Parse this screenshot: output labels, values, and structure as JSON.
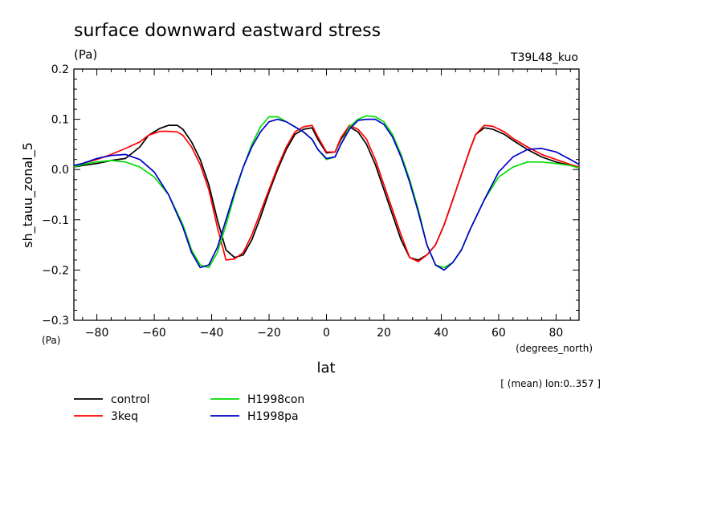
{
  "chart_data": {
    "type": "line",
    "title": "surface downward eastward stress",
    "units_label": "(Pa)",
    "top_right_label": "T39L48_kuo",
    "ylabel": "sh_tauu_zonal_5",
    "y_unit_label": "(Pa)",
    "xlabel": "lat",
    "x_unit_label": "(degrees_north)",
    "footnote": "[ (mean) lon:0..357 ]",
    "xlim": [
      -88,
      88
    ],
    "ylim": [
      -0.3,
      0.2
    ],
    "x_ticks": [
      -80,
      -60,
      -40,
      -20,
      0,
      20,
      40,
      60,
      80
    ],
    "x_tick_labels": [
      "−80",
      "−60",
      "−40",
      "−20",
      "0",
      "20",
      "40",
      "60",
      "80"
    ],
    "y_ticks": [
      -0.3,
      -0.2,
      -0.1,
      0.0,
      0.1,
      0.2
    ],
    "y_tick_labels": [
      "−0.3",
      "−0.2",
      "−0.1",
      "0.0",
      "0.1",
      "0.2"
    ],
    "grid": false,
    "legend_position": "bottom-left",
    "series": [
      {
        "name": "control",
        "color": "#000000",
        "x": [
          -88,
          -85,
          -80,
          -75,
          -70,
          -65,
          -62,
          -58,
          -55,
          -52,
          -50,
          -47,
          -44,
          -41,
          -38,
          -35,
          -32,
          -29,
          -26,
          -23,
          -20,
          -17,
          -14,
          -11,
          -8,
          -5,
          -3,
          0,
          3,
          5,
          8,
          11,
          14,
          17,
          20,
          23,
          26,
          29,
          32,
          35,
          38,
          41,
          44,
          47,
          50,
          52,
          55,
          58,
          62,
          65,
          70,
          75,
          80,
          85,
          88
        ],
        "values": [
          0.005,
          0.008,
          0.012,
          0.018,
          0.022,
          0.045,
          0.068,
          0.082,
          0.088,
          0.088,
          0.08,
          0.055,
          0.02,
          -0.03,
          -0.1,
          -0.16,
          -0.175,
          -0.17,
          -0.14,
          -0.095,
          -0.045,
          0.0,
          0.04,
          0.07,
          0.08,
          0.083,
          0.06,
          0.033,
          0.035,
          0.06,
          0.085,
          0.075,
          0.05,
          0.01,
          -0.04,
          -0.09,
          -0.14,
          -0.175,
          -0.18,
          -0.17,
          -0.15,
          -0.11,
          -0.06,
          -0.01,
          0.04,
          0.07,
          0.083,
          0.08,
          0.07,
          0.058,
          0.04,
          0.025,
          0.015,
          0.008,
          0.005
        ]
      },
      {
        "name": "3keq",
        "color": "#ff0000",
        "x": [
          -88,
          -85,
          -80,
          -75,
          -70,
          -65,
          -62,
          -58,
          -55,
          -52,
          -50,
          -47,
          -44,
          -41,
          -38,
          -35,
          -32,
          -29,
          -26,
          -23,
          -20,
          -17,
          -14,
          -11,
          -8,
          -5,
          -3,
          0,
          3,
          5,
          8,
          11,
          14,
          17,
          20,
          23,
          26,
          29,
          32,
          35,
          38,
          41,
          44,
          47,
          50,
          52,
          55,
          58,
          62,
          65,
          70,
          75,
          80,
          85,
          88
        ],
        "values": [
          0.008,
          0.012,
          0.02,
          0.03,
          0.042,
          0.055,
          0.068,
          0.076,
          0.076,
          0.075,
          0.068,
          0.045,
          0.01,
          -0.04,
          -0.115,
          -0.18,
          -0.178,
          -0.165,
          -0.13,
          -0.085,
          -0.04,
          0.005,
          0.045,
          0.075,
          0.085,
          0.088,
          0.065,
          0.035,
          0.035,
          0.063,
          0.088,
          0.08,
          0.06,
          0.02,
          -0.03,
          -0.08,
          -0.13,
          -0.175,
          -0.183,
          -0.17,
          -0.15,
          -0.11,
          -0.06,
          -0.01,
          0.04,
          0.07,
          0.088,
          0.086,
          0.075,
          0.062,
          0.045,
          0.03,
          0.02,
          0.01,
          0.005
        ]
      },
      {
        "name": "H1998con",
        "color": "#00dd00",
        "x": [
          -88,
          -85,
          -80,
          -75,
          -70,
          -65,
          -60,
          -55,
          -50,
          -47,
          -44,
          -41,
          -38,
          -35,
          -32,
          -29,
          -26,
          -23,
          -20,
          -17,
          -14,
          -11,
          -8,
          -5,
          -3,
          0,
          3,
          5,
          8,
          11,
          14,
          17,
          20,
          23,
          26,
          29,
          32,
          35,
          38,
          41,
          44,
          47,
          50,
          55,
          60,
          65,
          70,
          75,
          80,
          85,
          88
        ],
        "values": [
          0.005,
          0.01,
          0.015,
          0.018,
          0.015,
          0.005,
          -0.015,
          -0.05,
          -0.11,
          -0.16,
          -0.19,
          -0.195,
          -0.165,
          -0.11,
          -0.05,
          0.005,
          0.05,
          0.085,
          0.105,
          0.105,
          0.095,
          0.085,
          0.075,
          0.06,
          0.04,
          0.02,
          0.025,
          0.05,
          0.085,
          0.1,
          0.107,
          0.105,
          0.095,
          0.07,
          0.03,
          -0.02,
          -0.08,
          -0.15,
          -0.19,
          -0.195,
          -0.185,
          -0.16,
          -0.12,
          -0.06,
          -0.015,
          0.005,
          0.015,
          0.015,
          0.012,
          0.008,
          0.003
        ]
      },
      {
        "name": "H1998pa",
        "color": "#0000cc",
        "x": [
          -88,
          -85,
          -80,
          -75,
          -70,
          -65,
          -60,
          -55,
          -50,
          -47,
          -44,
          -41,
          -38,
          -35,
          -32,
          -29,
          -26,
          -23,
          -20,
          -17,
          -14,
          -11,
          -8,
          -5,
          -3,
          0,
          3,
          5,
          8,
          11,
          14,
          17,
          20,
          23,
          26,
          29,
          32,
          35,
          38,
          41,
          44,
          47,
          50,
          55,
          60,
          65,
          70,
          75,
          80,
          85,
          88
        ],
        "values": [
          0.008,
          0.012,
          0.022,
          0.028,
          0.03,
          0.02,
          -0.005,
          -0.05,
          -0.115,
          -0.165,
          -0.195,
          -0.19,
          -0.155,
          -0.1,
          -0.045,
          0.005,
          0.045,
          0.075,
          0.095,
          0.1,
          0.095,
          0.085,
          0.075,
          0.06,
          0.04,
          0.022,
          0.025,
          0.05,
          0.08,
          0.098,
          0.1,
          0.1,
          0.09,
          0.065,
          0.025,
          -0.025,
          -0.085,
          -0.15,
          -0.19,
          -0.2,
          -0.185,
          -0.16,
          -0.12,
          -0.06,
          -0.005,
          0.025,
          0.04,
          0.042,
          0.035,
          0.02,
          0.01
        ]
      }
    ]
  }
}
